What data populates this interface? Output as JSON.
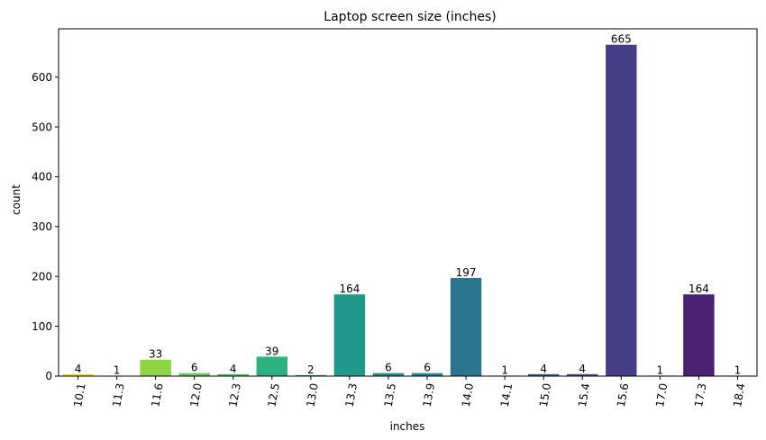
{
  "chart_data": {
    "type": "bar",
    "title": "Laptop screen size (inches)",
    "xlabel": "inches",
    "ylabel": "count",
    "categories": [
      "10.1",
      "11.3",
      "11.6",
      "12.0",
      "12.3",
      "12.5",
      "13.0",
      "13.3",
      "13.5",
      "13.9",
      "14.0",
      "14.1",
      "15.0",
      "15.4",
      "15.6",
      "17.0",
      "17.3",
      "18.4"
    ],
    "values": [
      4,
      1,
      33,
      6,
      4,
      39,
      2,
      164,
      6,
      6,
      197,
      1,
      4,
      4,
      665,
      1,
      164,
      1
    ],
    "colors": [
      "#dfe318",
      "#bade28",
      "#8dd544",
      "#65cb5e",
      "#46c06f",
      "#2db27d",
      "#21a685",
      "#1f998a",
      "#228c8d",
      "#26828e",
      "#2a768e",
      "#2f6b8e",
      "#35608d",
      "#3c528b",
      "#433e85",
      "#472e7c",
      "#482173",
      "#471063"
    ],
    "yticks": [
      0,
      100,
      200,
      300,
      400,
      500,
      600
    ],
    "ylim": [
      0,
      697
    ],
    "xtick_rotation": -80,
    "grid": false,
    "legend": "none"
  }
}
